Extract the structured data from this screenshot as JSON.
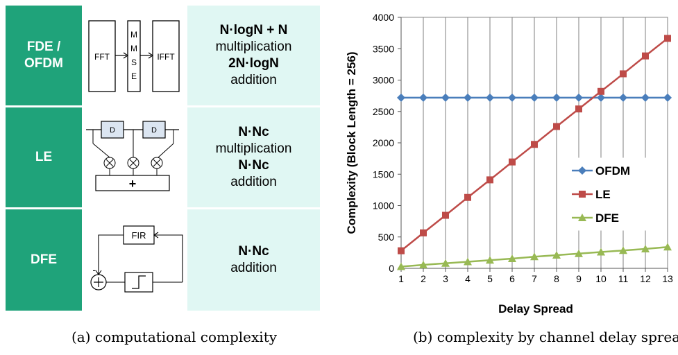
{
  "table": {
    "rows": [
      {
        "label": "FDE /\nOFDM",
        "lines": [
          {
            "text": "N·logN + N",
            "bold": true
          },
          {
            "text": "multiplication",
            "bold": false
          },
          {
            "text": "2N·logN",
            "bold": true
          },
          {
            "text": "addition",
            "bold": false
          }
        ]
      },
      {
        "label": "LE",
        "lines": [
          {
            "text": "N·Nc",
            "bold": true
          },
          {
            "text": "multiplication",
            "bold": false
          },
          {
            "text": "N·Nc",
            "bold": true
          },
          {
            "text": "addition",
            "bold": false
          }
        ]
      },
      {
        "label": "DFE",
        "lines": [
          {
            "text": "N·Nc",
            "bold": true
          },
          {
            "text": "addition",
            "bold": false
          }
        ]
      }
    ],
    "diagram_text": {
      "fft": "FFT",
      "mmse": [
        "M",
        "M",
        "S",
        "E"
      ],
      "ifft": "IFFT",
      "delay": "D",
      "plus": "+",
      "fir": "FIR",
      "minus": "-"
    }
  },
  "captions": {
    "a": "(a) computational complexity",
    "b": "(b) complexity by channel delay spread"
  },
  "chart_data": {
    "type": "line",
    "title": "",
    "xlabel": "Delay Spread",
    "ylabel": "Complexity (Block Length = 256)",
    "x": [
      1,
      2,
      3,
      4,
      5,
      6,
      7,
      8,
      9,
      10,
      11,
      12,
      13
    ],
    "ylim": [
      0,
      4000
    ],
    "yticks": [
      0,
      500,
      1000,
      1500,
      2000,
      2500,
      3000,
      3500,
      4000
    ],
    "grid": "vertical",
    "legend": "right",
    "series": [
      {
        "name": "OFDM",
        "color": "#4a7ebb",
        "marker": "diamond",
        "values": [
          2720,
          2720,
          2720,
          2720,
          2720,
          2720,
          2720,
          2720,
          2720,
          2720,
          2720,
          2720,
          2720
        ]
      },
      {
        "name": "LE",
        "color": "#be4b48",
        "marker": "square",
        "values": [
          280,
          565,
          845,
          1130,
          1410,
          1695,
          1975,
          2260,
          2540,
          2820,
          3100,
          3385,
          3665
        ]
      },
      {
        "name": "DFE",
        "color": "#98b954",
        "marker": "triangle",
        "values": [
          28,
          55,
          80,
          105,
          130,
          155,
          185,
          210,
          235,
          260,
          285,
          310,
          340
        ]
      }
    ]
  }
}
